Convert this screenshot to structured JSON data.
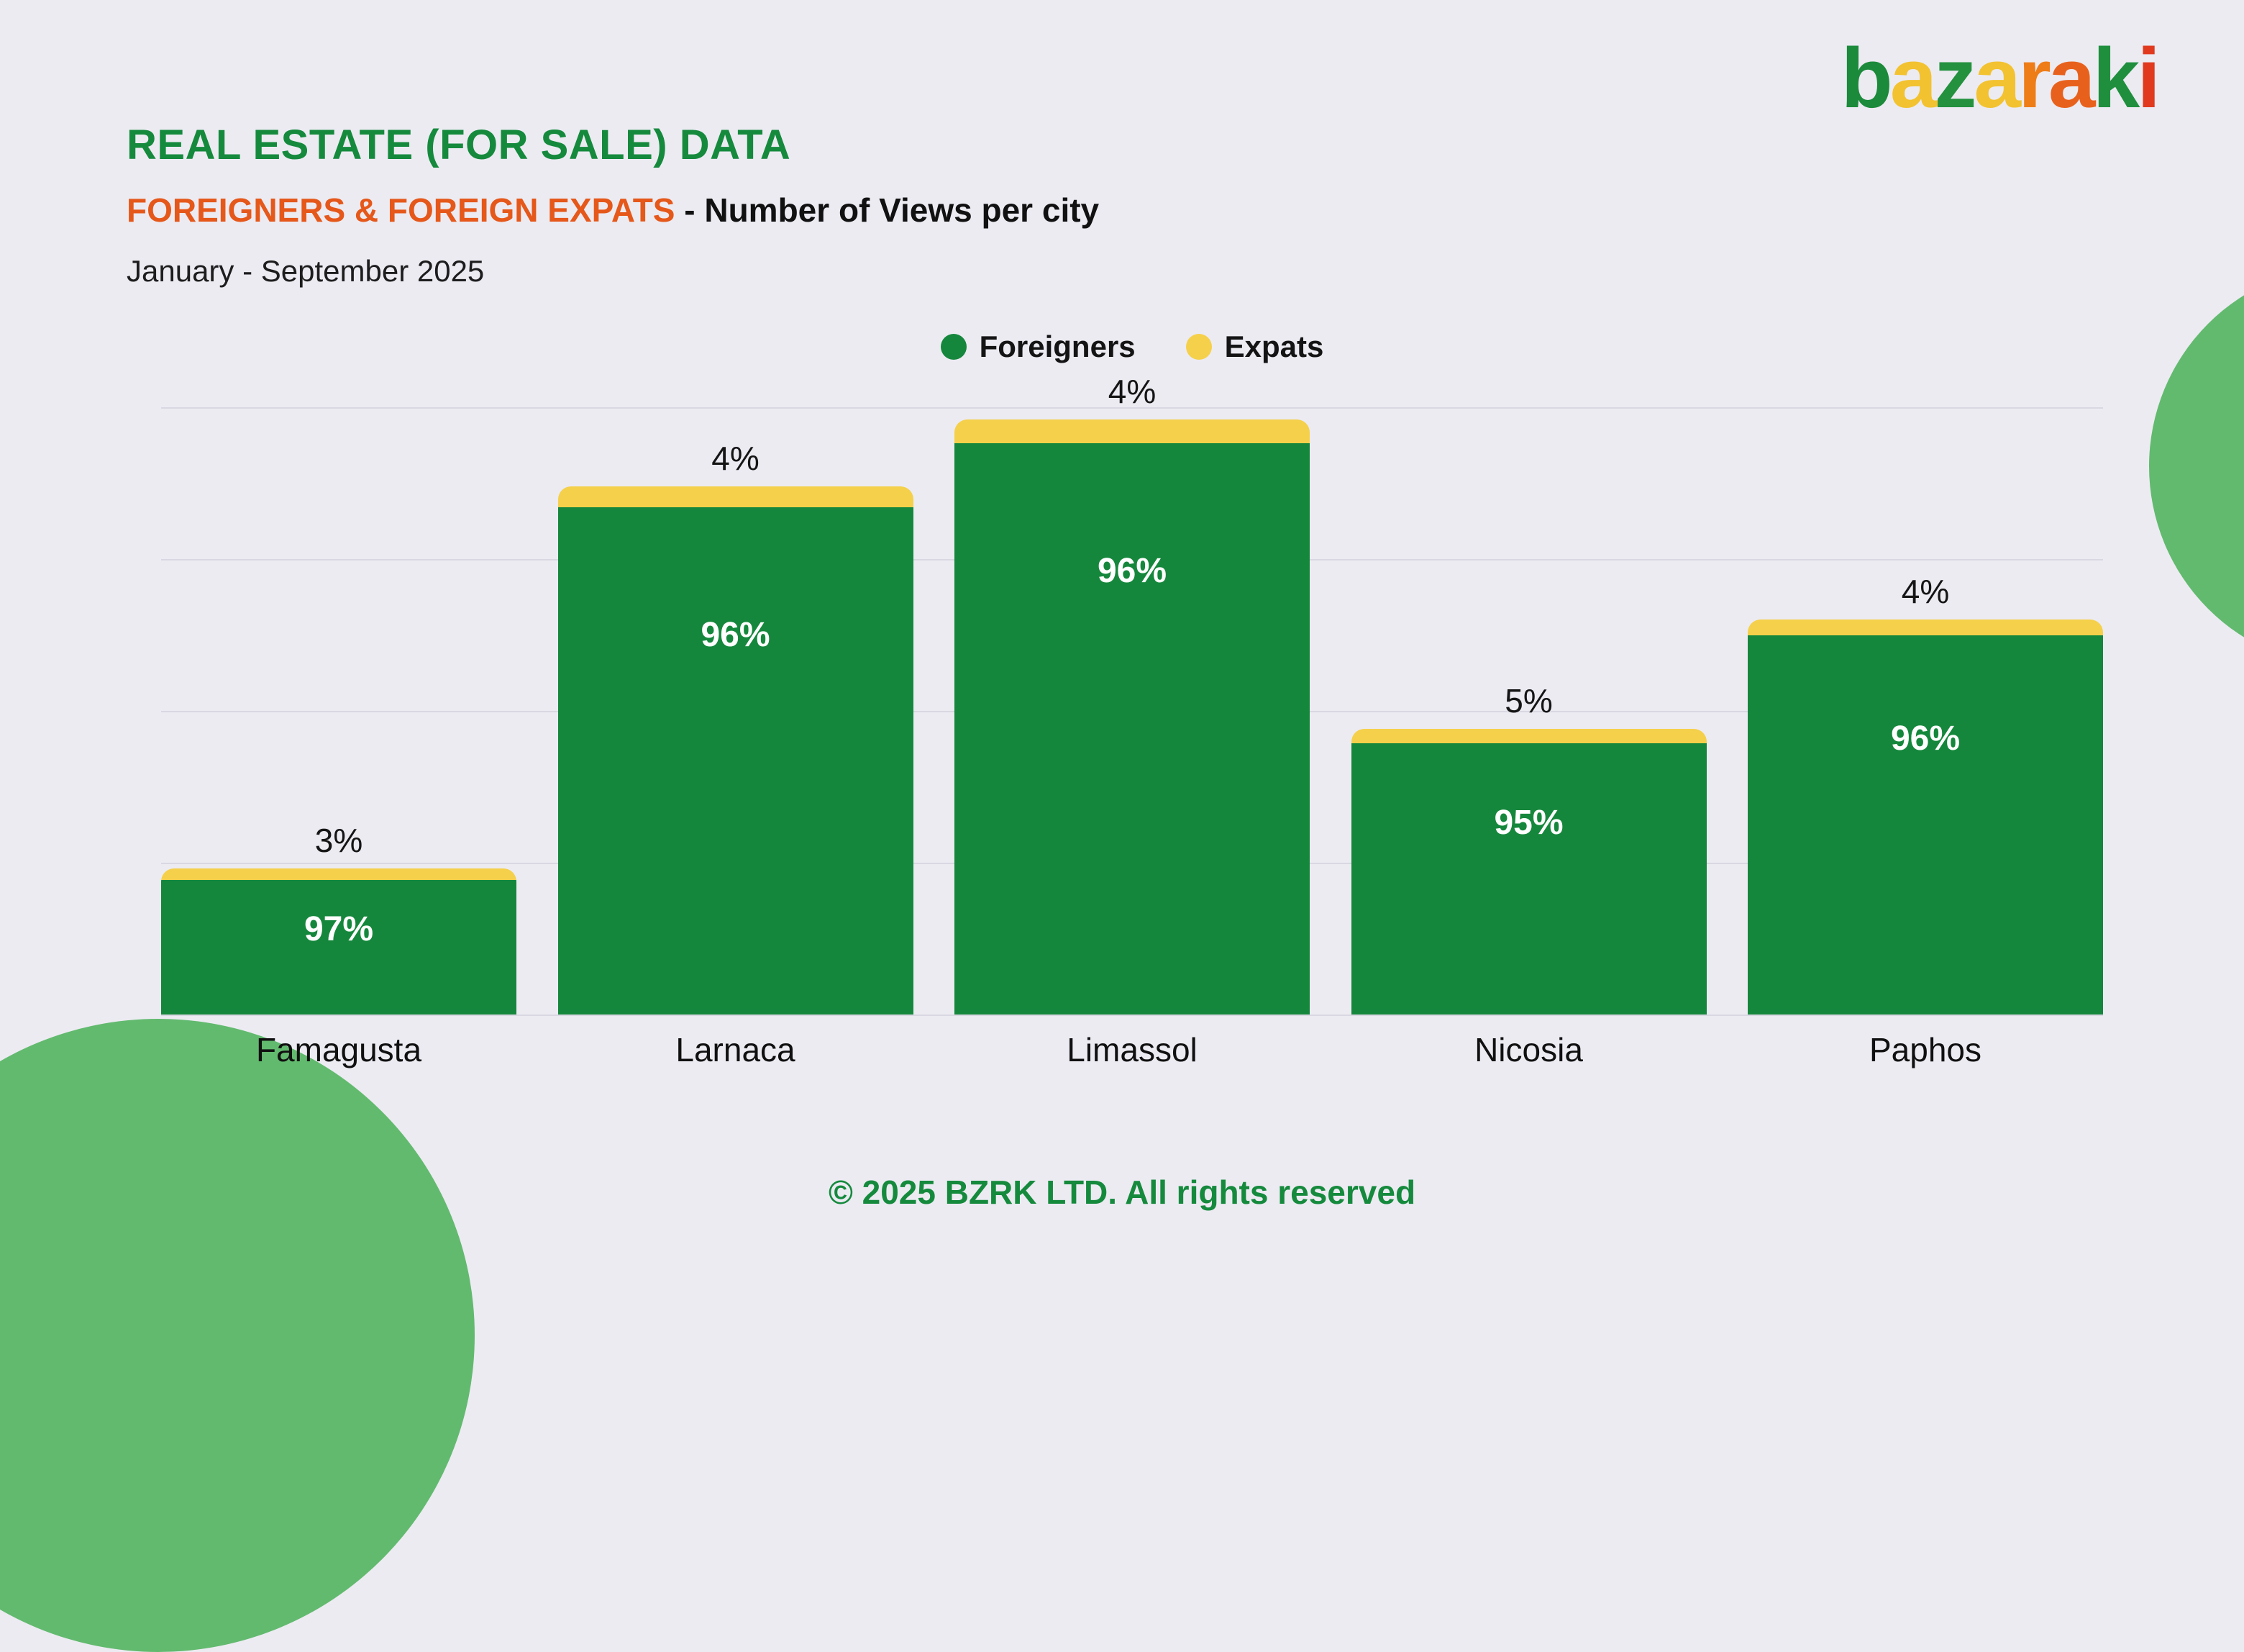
{
  "header": {
    "title": "REAL ESTATE (FOR SALE) DATA",
    "subtitle_highlight": "FOREIGNERS & FOREIGN EXPATS",
    "subtitle_rest": " - Number of Views per city",
    "period": "January - September 2025"
  },
  "logo": {
    "name": "bazaraki",
    "letters": [
      {
        "char": "b",
        "color": "#1B8A3A"
      },
      {
        "char": "a",
        "color": "#F2C230"
      },
      {
        "char": "z",
        "color": "#23913E"
      },
      {
        "char": "a",
        "color": "#F2C230"
      },
      {
        "char": "r",
        "color": "#EE7D18"
      },
      {
        "char": "a",
        "color": "#E8611C"
      },
      {
        "char": "k",
        "color": "#1F8F3E"
      },
      {
        "char": "i",
        "color": "#E0391E"
      }
    ]
  },
  "legend": [
    {
      "label": "Foreigners",
      "color": "#15873C"
    },
    {
      "label": "Expats",
      "color": "#F5D04A"
    }
  ],
  "chart_data": {
    "type": "bar",
    "stacked": true,
    "title": "FOREIGNERS & FOREIGN EXPATS - Number of Views per city",
    "period": "January - September 2025",
    "categories": [
      "Famagusta",
      "Larnaca",
      "Limassol",
      "Nicosia",
      "Paphos"
    ],
    "series": [
      {
        "name": "Foreigners",
        "values": [
          97,
          96,
          96,
          95,
          96
        ],
        "unit": "%",
        "color": "#15873C"
      },
      {
        "name": "Expats",
        "values": [
          3,
          4,
          4,
          5,
          4
        ],
        "unit": "%",
        "color": "#F5D04A"
      }
    ],
    "bar_total_height_fractions": [
      0.24,
      0.87,
      0.98,
      0.47,
      0.65
    ],
    "gridlines": 5,
    "legend_position": "top-center",
    "value_labels": {
      "expats": "above-bar",
      "foreigners": "inside-bar"
    }
  },
  "footer": {
    "copyright": "© 2025 BZRK LTD. All rights reserved"
  },
  "colors": {
    "background": "#ECEBF2",
    "accent_green": "#15873C",
    "title_green": "#158A3D",
    "accent_yellow": "#F5D04A",
    "accent_orange": "#E5581A",
    "decorative_green": "#62BA6E",
    "gridline": "#D9D7E1"
  }
}
